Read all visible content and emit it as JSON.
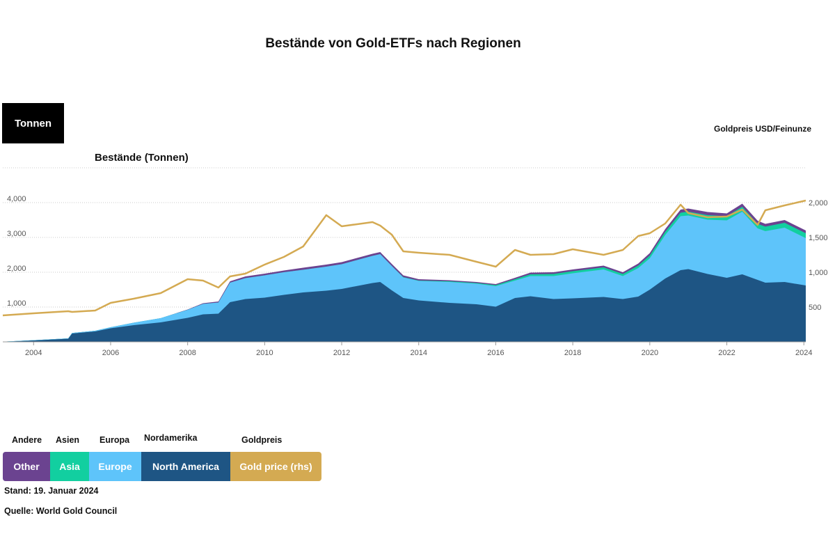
{
  "title": "Bestände von Gold-ETFs nach Regionen",
  "unit_box": "Tonnen",
  "lhs_label": "Bestände (Tonnen)",
  "rhs_label": "Goldpreis USD/Feinunze",
  "legend": {
    "other": {
      "head": "Andere",
      "label": "Other",
      "color": "#6b4390"
    },
    "asia": {
      "head": "Asien",
      "label": "Asia",
      "color": "#12cfa0"
    },
    "europe": {
      "head": "Europa",
      "label": "Europe",
      "color": "#5ec4fa"
    },
    "na": {
      "head": "Nordamerika",
      "label": "North America",
      "color": "#1e5584"
    },
    "gold": {
      "head": "Goldpreis",
      "label": "Gold price (rhs)",
      "color": "#d4aa52"
    }
  },
  "footer": {
    "date": "Stand: 19. Januar 2024",
    "source": "Quelle: World Gold Council"
  },
  "chart_data": {
    "type": "area",
    "title": "Bestände von Gold-ETFs nach Regionen",
    "ylabel": "Bestände (Tonnen)",
    "y2label": "Goldpreis USD/Feinunze",
    "xlim": [
      2003.2,
      2024.05
    ],
    "ylim": [
      0,
      4000
    ],
    "y2lim": [
      0,
      2000
    ],
    "x_ticks": [
      "2004",
      "2006",
      "2008",
      "2010",
      "2012",
      "2014",
      "2016",
      "2018",
      "2020",
      "2022",
      "2024"
    ],
    "y_ticks": [
      "1,000",
      "2,000",
      "3,000",
      "4,000"
    ],
    "y2_ticks": [
      "500",
      "1,000",
      "1,500",
      "2,000"
    ],
    "x": [
      2003.2,
      2004.0,
      2004.9,
      2005.0,
      2005.6,
      2006.0,
      2006.6,
      2007.3,
      2008.0,
      2008.4,
      2008.8,
      2009.1,
      2009.5,
      2010.0,
      2010.5,
      2011.0,
      2011.6,
      2012.0,
      2012.8,
      2013.0,
      2013.3,
      2013.6,
      2014.0,
      2014.8,
      2015.5,
      2016.0,
      2016.5,
      2016.9,
      2017.5,
      2018.0,
      2018.8,
      2019.3,
      2019.7,
      2020.0,
      2020.4,
      2020.8,
      2021.0,
      2021.5,
      2022.0,
      2022.4,
      2022.8,
      2023.0,
      2023.5,
      2024.05
    ],
    "series": [
      {
        "name": "North America",
        "values": [
          0,
          40,
          90,
          240,
          300,
          390,
          480,
          560,
          690,
          790,
          810,
          1140,
          1230,
          1270,
          1350,
          1420,
          1470,
          1520,
          1690,
          1720,
          1480,
          1260,
          1190,
          1120,
          1080,
          1010,
          1260,
          1310,
          1230,
          1250,
          1290,
          1230,
          1300,
          1500,
          1820,
          2060,
          2090,
          1950,
          1840,
          1940,
          1780,
          1700,
          1720,
          1620
        ]
      },
      {
        "name": "Europe",
        "values": [
          5,
          8,
          10,
          15,
          20,
          30,
          70,
          120,
          230,
          300,
          320,
          560,
          600,
          640,
          650,
          650,
          690,
          710,
          780,
          800,
          700,
          590,
          560,
          600,
          590,
          590,
          500,
          580,
          660,
          720,
          790,
          660,
          820,
          900,
          1250,
          1550,
          1540,
          1560,
          1650,
          1800,
          1480,
          1480,
          1560,
          1360
        ]
      },
      {
        "name": "Asia",
        "values": [
          0,
          0,
          0,
          0,
          0,
          0,
          0,
          0,
          0,
          0,
          0,
          0,
          0,
          0,
          0,
          0,
          0,
          0,
          0,
          0,
          0,
          10,
          10,
          20,
          20,
          30,
          40,
          50,
          60,
          60,
          60,
          60,
          70,
          80,
          90,
          100,
          110,
          130,
          120,
          140,
          130,
          130,
          140,
          140
        ]
      },
      {
        "name": "Other",
        "values": [
          0,
          0,
          0,
          0,
          0,
          0,
          0,
          0,
          10,
          20,
          30,
          40,
          50,
          50,
          50,
          60,
          60,
          60,
          60,
          60,
          60,
          50,
          40,
          30,
          30,
          30,
          40,
          50,
          50,
          50,
          50,
          50,
          60,
          70,
          80,
          90,
          90,
          90,
          80,
          90,
          90,
          80,
          80,
          80
        ]
      },
      {
        "name": "Gold price (rhs)",
        "axis": "right",
        "values": [
          380,
          410,
          440,
          430,
          450,
          560,
          620,
          700,
          900,
          880,
          780,
          940,
          980,
          1110,
          1220,
          1370,
          1820,
          1660,
          1720,
          1670,
          1540,
          1300,
          1280,
          1250,
          1150,
          1080,
          1320,
          1250,
          1260,
          1330,
          1250,
          1320,
          1520,
          1560,
          1700,
          1970,
          1850,
          1790,
          1800,
          1900,
          1680,
          1890,
          1960,
          2030
        ]
      }
    ]
  }
}
